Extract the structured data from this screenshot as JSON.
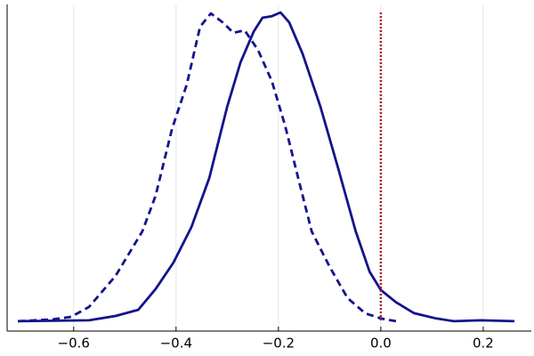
{
  "chart_data": {
    "type": "line",
    "xlim": [
      -0.73,
      0.294
    ],
    "ylim": [
      -0.032,
      1.026
    ],
    "xticks": [
      {
        "value": -0.6,
        "label": "−0.6"
      },
      {
        "value": -0.4,
        "label": "−0.4"
      },
      {
        "value": -0.2,
        "label": "−0.2"
      },
      {
        "value": 0,
        "label": "0.0"
      },
      0.2
    ],
    "grid": "x",
    "series": [
      {
        "color": "#14148c",
        "dash": false,
        "x": [
          -0.709,
          -0.57,
          -0.518,
          -0.474,
          -0.44,
          -0.405,
          -0.37,
          -0.335,
          -0.3,
          -0.274,
          -0.248,
          -0.231,
          -0.213,
          -0.196,
          -0.179,
          -0.153,
          -0.118,
          -0.083,
          -0.049,
          -0.022,
          0.0,
          0.03,
          0.065,
          0.108,
          0.143,
          0.195,
          0.261
        ],
        "values": [
          0,
          0.003,
          0.017,
          0.037,
          0.104,
          0.19,
          0.305,
          0.464,
          0.695,
          0.839,
          0.939,
          0.983,
          0.988,
          1.0,
          0.968,
          0.867,
          0.695,
          0.493,
          0.291,
          0.161,
          0.101,
          0.061,
          0.026,
          0.009,
          0,
          0.003,
          0
        ]
      },
      {
        "color": "#14148c",
        "dash": true,
        "x": [
          -0.709,
          -0.64,
          -0.605,
          -0.57,
          -0.518,
          -0.466,
          -0.44,
          -0.408,
          -0.379,
          -0.353,
          -0.332,
          -0.309,
          -0.288,
          -0.266,
          -0.24,
          -0.213,
          -0.187,
          -0.161,
          -0.135,
          -0.1,
          -0.065,
          -0.031,
          0.0,
          0.03
        ],
        "values": [
          0,
          0.006,
          0.014,
          0.046,
          0.147,
          0.291,
          0.406,
          0.622,
          0.767,
          0.954,
          0.997,
          0.968,
          0.934,
          0.942,
          0.879,
          0.778,
          0.634,
          0.461,
          0.291,
          0.176,
          0.075,
          0.026,
          0.009,
          0
        ]
      }
    ],
    "vline": {
      "x": 0,
      "color": "#b01c1c"
    }
  }
}
